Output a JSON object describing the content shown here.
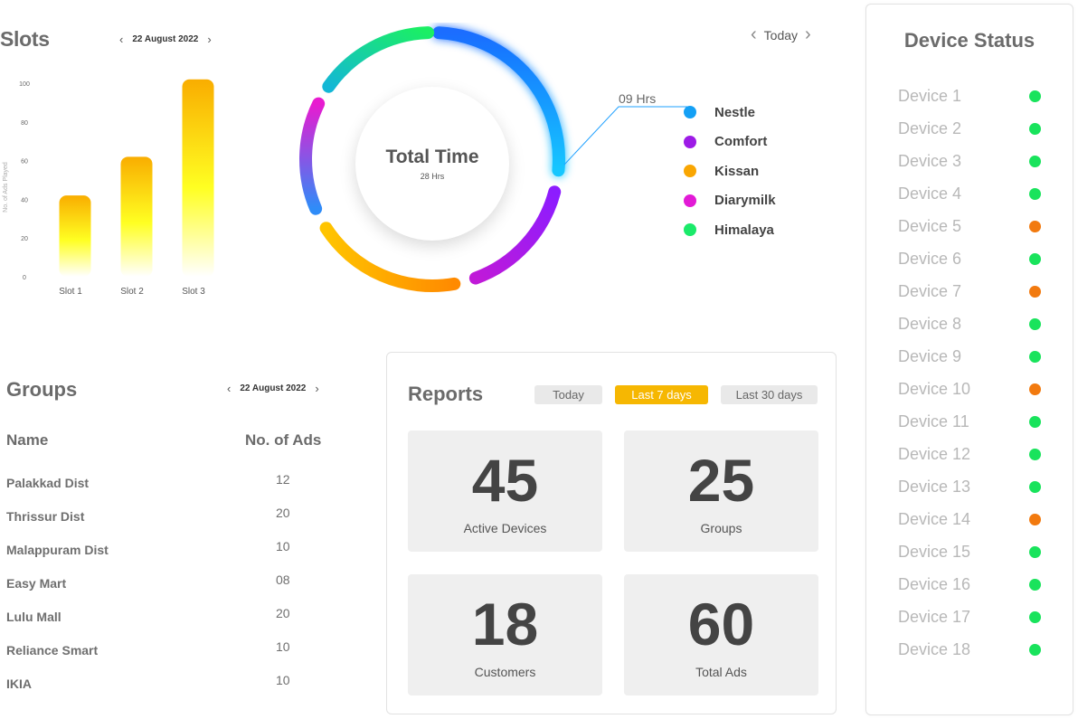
{
  "slots": {
    "title": "Slots",
    "date": "22 August 2022",
    "prev_icon": "chevron-left-icon",
    "next_icon": "chevron-right-icon"
  },
  "chart_data": {
    "type": "bar",
    "categories": [
      "Slot 1",
      "Slot 2",
      "Slot 3"
    ],
    "values": [
      42,
      62,
      102
    ],
    "ylabel": "No. of Ads Played",
    "yticks": [
      0,
      20,
      40,
      60,
      80,
      100
    ],
    "ylim": [
      0,
      100
    ],
    "grid": false
  },
  "donut": {
    "title": "Total Time",
    "subtitle": "28 Hrs",
    "callout": "09 Hrs",
    "nav_label": "Today",
    "segments": [
      {
        "name": "Nestle",
        "color": "#1a8cff"
      },
      {
        "name": "Comfort",
        "color": "#a21ce6"
      },
      {
        "name": "Kissan",
        "color": "#f9a602"
      },
      {
        "name": "Diarymilk",
        "color": "#e21ad6"
      },
      {
        "name": "Himalaya",
        "color": "#1bea6a"
      }
    ]
  },
  "groups": {
    "title": "Groups",
    "date": "22 August 2022",
    "col_name": "Name",
    "col_ads": "No. of Ads",
    "rows": [
      {
        "name": "Palakkad Dist",
        "ads": "12"
      },
      {
        "name": "Thrissur Dist",
        "ads": "20"
      },
      {
        "name": "Malappuram Dist",
        "ads": "10"
      },
      {
        "name": "Easy Mart",
        "ads": "08"
      },
      {
        "name": "Lulu Mall",
        "ads": "20"
      },
      {
        "name": "Reliance Smart",
        "ads": "10"
      },
      {
        "name": "IKIA",
        "ads": "10"
      }
    ]
  },
  "reports": {
    "title": "Reports",
    "tabs": [
      {
        "label": "Today",
        "active": false
      },
      {
        "label": "Last 7 days",
        "active": true
      },
      {
        "label": "Last 30 days",
        "active": false
      }
    ],
    "cards": [
      {
        "value": "45",
        "label": "Active Devices"
      },
      {
        "value": "25",
        "label": "Groups"
      },
      {
        "value": "18",
        "label": "Customers"
      },
      {
        "value": "60",
        "label": "Total Ads"
      }
    ]
  },
  "device_status": {
    "title": "Device Status",
    "online_color": "#19e35c",
    "offline_color": "#f27a0f",
    "devices": [
      {
        "name": "Device 1",
        "status": "online"
      },
      {
        "name": "Device 2",
        "status": "online"
      },
      {
        "name": "Device 3",
        "status": "online"
      },
      {
        "name": "Device 4",
        "status": "online"
      },
      {
        "name": "Device 5",
        "status": "offline"
      },
      {
        "name": "Device 6",
        "status": "online"
      },
      {
        "name": "Device 7",
        "status": "offline"
      },
      {
        "name": "Device 8",
        "status": "online"
      },
      {
        "name": "Device 9",
        "status": "online"
      },
      {
        "name": "Device 10",
        "status": "offline"
      },
      {
        "name": "Device 11",
        "status": "online"
      },
      {
        "name": "Device 12",
        "status": "online"
      },
      {
        "name": "Device 13",
        "status": "online"
      },
      {
        "name": "Device 14",
        "status": "offline"
      },
      {
        "name": "Device 15",
        "status": "online"
      },
      {
        "name": "Device 16",
        "status": "online"
      },
      {
        "name": "Device 17",
        "status": "online"
      },
      {
        "name": "Device 18",
        "status": "online"
      }
    ]
  }
}
